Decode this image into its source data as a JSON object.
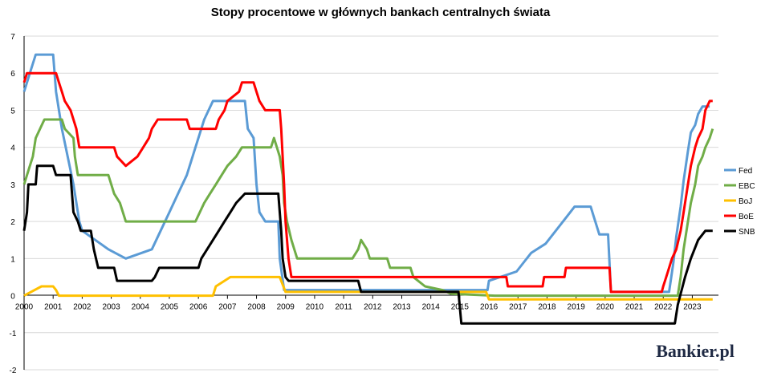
{
  "chart_data": {
    "type": "line",
    "title": "Stopy procentowe w głównych bankach centralnych świata",
    "x_ticks": [
      "2000",
      "2001",
      "2002",
      "2003",
      "2004",
      "2005",
      "2006",
      "2007",
      "2008",
      "2009",
      "2010",
      "2011",
      "2012",
      "2013",
      "2014",
      "2015",
      "2016",
      "2017",
      "2018",
      "2019",
      "2020",
      "2021",
      "2022",
      "2023"
    ],
    "y_ticks": [
      "7",
      "6",
      "5",
      "4",
      "3",
      "2",
      "1",
      "0",
      "-1",
      "-2"
    ],
    "xlim": [
      2000,
      2023.9
    ],
    "ylim": [
      -2,
      7
    ],
    "legend_position": "right",
    "series": [
      {
        "name": "Fed",
        "color": "#5b9bd5",
        "points": [
          [
            2000,
            5.5
          ],
          [
            2000.1,
            5.75
          ],
          [
            2000.2,
            6.0
          ],
          [
            2000.4,
            6.5
          ],
          [
            2001.0,
            6.5
          ],
          [
            2001.1,
            5.5
          ],
          [
            2001.3,
            4.5
          ],
          [
            2001.5,
            3.75
          ],
          [
            2001.7,
            3.0
          ],
          [
            2001.9,
            2.0
          ],
          [
            2002.0,
            1.75
          ],
          [
            2002.9,
            1.25
          ],
          [
            2003.5,
            1.0
          ],
          [
            2004.4,
            1.25
          ],
          [
            2004.7,
            1.75
          ],
          [
            2005.0,
            2.25
          ],
          [
            2005.3,
            2.75
          ],
          [
            2005.6,
            3.25
          ],
          [
            2005.9,
            4.0
          ],
          [
            2006.2,
            4.75
          ],
          [
            2006.5,
            5.25
          ],
          [
            2007.6,
            5.25
          ],
          [
            2007.7,
            4.5
          ],
          [
            2007.9,
            4.25
          ],
          [
            2008.0,
            3.0
          ],
          [
            2008.1,
            2.25
          ],
          [
            2008.3,
            2.0
          ],
          [
            2008.75,
            2.0
          ],
          [
            2008.8,
            1.0
          ],
          [
            2008.95,
            0.15
          ],
          [
            2015.95,
            0.15
          ],
          [
            2016.0,
            0.4
          ],
          [
            2016.95,
            0.65
          ],
          [
            2017.2,
            0.9
          ],
          [
            2017.45,
            1.15
          ],
          [
            2017.95,
            1.4
          ],
          [
            2018.2,
            1.65
          ],
          [
            2018.45,
            1.9
          ],
          [
            2018.7,
            2.15
          ],
          [
            2018.95,
            2.4
          ],
          [
            2019.5,
            2.4
          ],
          [
            2019.6,
            2.15
          ],
          [
            2019.7,
            1.9
          ],
          [
            2019.8,
            1.65
          ],
          [
            2020.1,
            1.65
          ],
          [
            2020.2,
            0.1
          ],
          [
            2022.2,
            0.1
          ],
          [
            2022.35,
            0.9
          ],
          [
            2022.45,
            1.6
          ],
          [
            2022.6,
            2.4
          ],
          [
            2022.7,
            3.1
          ],
          [
            2022.85,
            3.9
          ],
          [
            2022.95,
            4.4
          ],
          [
            2023.1,
            4.6
          ],
          [
            2023.2,
            4.9
          ],
          [
            2023.35,
            5.1
          ],
          [
            2023.6,
            5.1
          ]
        ]
      },
      {
        "name": "EBC",
        "color": "#70ad47",
        "points": [
          [
            2000,
            3.0
          ],
          [
            2000.1,
            3.25
          ],
          [
            2000.2,
            3.5
          ],
          [
            2000.3,
            3.75
          ],
          [
            2000.4,
            4.25
          ],
          [
            2000.7,
            4.75
          ],
          [
            2001.3,
            4.75
          ],
          [
            2001.4,
            4.5
          ],
          [
            2001.7,
            4.25
          ],
          [
            2001.75,
            3.75
          ],
          [
            2001.85,
            3.25
          ],
          [
            2002.9,
            3.25
          ],
          [
            2003.1,
            2.75
          ],
          [
            2003.3,
            2.5
          ],
          [
            2003.5,
            2.0
          ],
          [
            2005.9,
            2.0
          ],
          [
            2006.2,
            2.5
          ],
          [
            2006.4,
            2.75
          ],
          [
            2006.6,
            3.0
          ],
          [
            2006.8,
            3.25
          ],
          [
            2007.0,
            3.5
          ],
          [
            2007.3,
            3.75
          ],
          [
            2007.5,
            4.0
          ],
          [
            2008.5,
            4.0
          ],
          [
            2008.6,
            4.25
          ],
          [
            2008.8,
            3.75
          ],
          [
            2008.9,
            3.25
          ],
          [
            2008.95,
            2.5
          ],
          [
            2009.05,
            2.0
          ],
          [
            2009.2,
            1.5
          ],
          [
            2009.4,
            1.0
          ],
          [
            2011.3,
            1.0
          ],
          [
            2011.5,
            1.25
          ],
          [
            2011.6,
            1.5
          ],
          [
            2011.8,
            1.25
          ],
          [
            2011.9,
            1.0
          ],
          [
            2012.5,
            1.0
          ],
          [
            2012.6,
            0.75
          ],
          [
            2013.3,
            0.75
          ],
          [
            2013.4,
            0.5
          ],
          [
            2013.8,
            0.25
          ],
          [
            2014.4,
            0.15
          ],
          [
            2014.7,
            0.05
          ],
          [
            2016.2,
            0.0
          ],
          [
            2022.5,
            0.0
          ],
          [
            2022.6,
            0.5
          ],
          [
            2022.7,
            1.25
          ],
          [
            2022.85,
            2.0
          ],
          [
            2022.95,
            2.5
          ],
          [
            2023.1,
            3.0
          ],
          [
            2023.2,
            3.5
          ],
          [
            2023.35,
            3.75
          ],
          [
            2023.45,
            4.0
          ],
          [
            2023.6,
            4.25
          ],
          [
            2023.7,
            4.5
          ]
        ]
      },
      {
        "name": "BoJ",
        "color": "#ffc000",
        "points": [
          [
            2000,
            0.0
          ],
          [
            2000.6,
            0.25
          ],
          [
            2001.0,
            0.25
          ],
          [
            2001.1,
            0.15
          ],
          [
            2001.2,
            0.0
          ],
          [
            2006.5,
            0.0
          ],
          [
            2006.6,
            0.25
          ],
          [
            2007.1,
            0.5
          ],
          [
            2008.8,
            0.5
          ],
          [
            2008.9,
            0.3
          ],
          [
            2009.0,
            0.1
          ],
          [
            2015.9,
            0.1
          ],
          [
            2016.0,
            -0.1
          ],
          [
            2023.7,
            -0.1
          ]
        ]
      },
      {
        "name": "BoE",
        "color": "#ff0000",
        "points": [
          [
            2000,
            5.75
          ],
          [
            2000.1,
            6.0
          ],
          [
            2001.1,
            6.0
          ],
          [
            2001.2,
            5.75
          ],
          [
            2001.3,
            5.5
          ],
          [
            2001.4,
            5.25
          ],
          [
            2001.6,
            5.0
          ],
          [
            2001.7,
            4.75
          ],
          [
            2001.8,
            4.5
          ],
          [
            2001.9,
            4.0
          ],
          [
            2003.1,
            4.0
          ],
          [
            2003.2,
            3.75
          ],
          [
            2003.5,
            3.5
          ],
          [
            2003.9,
            3.75
          ],
          [
            2004.1,
            4.0
          ],
          [
            2004.3,
            4.25
          ],
          [
            2004.4,
            4.5
          ],
          [
            2004.6,
            4.75
          ],
          [
            2005.6,
            4.75
          ],
          [
            2005.7,
            4.5
          ],
          [
            2006.6,
            4.5
          ],
          [
            2006.7,
            4.75
          ],
          [
            2006.9,
            5.0
          ],
          [
            2007.0,
            5.25
          ],
          [
            2007.4,
            5.5
          ],
          [
            2007.5,
            5.75
          ],
          [
            2007.9,
            5.75
          ],
          [
            2008.0,
            5.5
          ],
          [
            2008.1,
            5.25
          ],
          [
            2008.3,
            5.0
          ],
          [
            2008.8,
            5.0
          ],
          [
            2008.85,
            4.5
          ],
          [
            2008.95,
            3.0
          ],
          [
            2009.0,
            2.0
          ],
          [
            2009.1,
            1.0
          ],
          [
            2009.2,
            0.5
          ],
          [
            2016.6,
            0.5
          ],
          [
            2016.65,
            0.25
          ],
          [
            2017.85,
            0.25
          ],
          [
            2017.9,
            0.5
          ],
          [
            2018.6,
            0.5
          ],
          [
            2018.65,
            0.75
          ],
          [
            2020.15,
            0.75
          ],
          [
            2020.2,
            0.1
          ],
          [
            2021.95,
            0.1
          ],
          [
            2022.0,
            0.25
          ],
          [
            2022.1,
            0.5
          ],
          [
            2022.2,
            0.75
          ],
          [
            2022.3,
            1.0
          ],
          [
            2022.45,
            1.25
          ],
          [
            2022.6,
            1.75
          ],
          [
            2022.7,
            2.25
          ],
          [
            2022.85,
            3.0
          ],
          [
            2022.95,
            3.5
          ],
          [
            2023.1,
            4.0
          ],
          [
            2023.2,
            4.25
          ],
          [
            2023.35,
            4.5
          ],
          [
            2023.45,
            5.0
          ],
          [
            2023.6,
            5.25
          ],
          [
            2023.7,
            5.25
          ]
        ]
      },
      {
        "name": "SNB",
        "color": "#000000",
        "points": [
          [
            2000,
            1.75
          ],
          [
            2000.1,
            2.25
          ],
          [
            2000.15,
            3.0
          ],
          [
            2000.4,
            3.0
          ],
          [
            2000.45,
            3.5
          ],
          [
            2001.0,
            3.5
          ],
          [
            2001.1,
            3.25
          ],
          [
            2001.6,
            3.25
          ],
          [
            2001.7,
            2.25
          ],
          [
            2001.85,
            2.0
          ],
          [
            2001.95,
            1.75
          ],
          [
            2002.3,
            1.75
          ],
          [
            2002.4,
            1.25
          ],
          [
            2002.55,
            0.75
          ],
          [
            2003.1,
            0.75
          ],
          [
            2003.2,
            0.4
          ],
          [
            2004.4,
            0.4
          ],
          [
            2004.5,
            0.5
          ],
          [
            2004.65,
            0.75
          ],
          [
            2006.0,
            0.75
          ],
          [
            2006.1,
            1.0
          ],
          [
            2006.3,
            1.25
          ],
          [
            2006.5,
            1.5
          ],
          [
            2006.7,
            1.75
          ],
          [
            2006.9,
            2.0
          ],
          [
            2007.1,
            2.25
          ],
          [
            2007.3,
            2.5
          ],
          [
            2007.6,
            2.75
          ],
          [
            2008.75,
            2.75
          ],
          [
            2008.8,
            2.25
          ],
          [
            2008.85,
            1.75
          ],
          [
            2008.9,
            1.0
          ],
          [
            2009.0,
            0.5
          ],
          [
            2009.1,
            0.4
          ],
          [
            2011.5,
            0.4
          ],
          [
            2011.6,
            0.1
          ],
          [
            2014.95,
            0.1
          ],
          [
            2015.05,
            -0.75
          ],
          [
            2022.4,
            -0.75
          ],
          [
            2022.5,
            -0.25
          ],
          [
            2022.75,
            0.5
          ],
          [
            2022.95,
            1.0
          ],
          [
            2023.2,
            1.5
          ],
          [
            2023.45,
            1.75
          ],
          [
            2023.7,
            1.75
          ]
        ]
      }
    ]
  },
  "logo": {
    "text": "Bankier.pl"
  }
}
